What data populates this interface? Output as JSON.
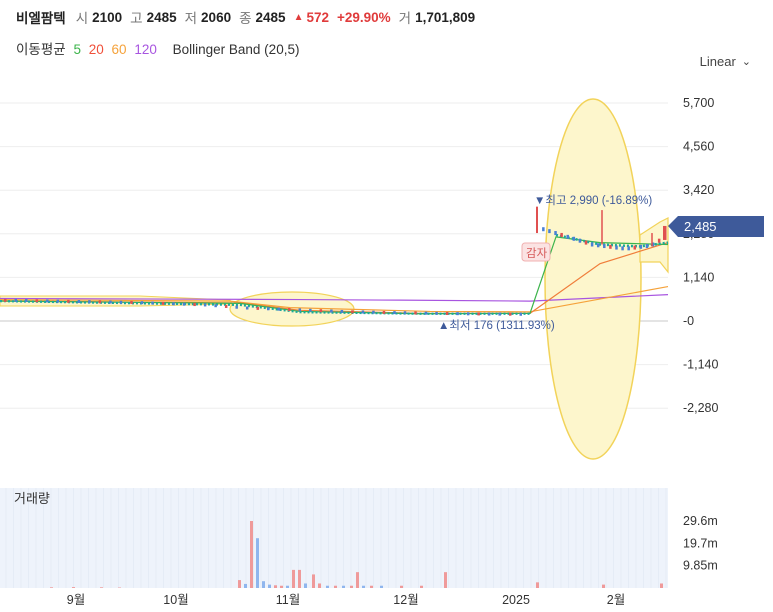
{
  "header": {
    "stock_name": "비엘팜텍",
    "open_label": "시",
    "open": "2100",
    "high_label": "고",
    "high": "2485",
    "low_label": "저",
    "low": "2060",
    "close_label": "종",
    "close": "2485",
    "change": "572",
    "change_pct": "+29.90%",
    "volume_label": "거",
    "volume": "1,701,809"
  },
  "indicators": {
    "label": "이동평균",
    "ma5": "5",
    "ma20": "20",
    "ma60": "60",
    "ma120": "120",
    "bb": "Bollinger Band (20,5)"
  },
  "scale_selector": {
    "label": "Linear"
  },
  "colors": {
    "up": "#e05050",
    "down": "#4a7fd4",
    "ma5": "#3cb44b",
    "ma20": "#f07d3a",
    "ma60": "#f5a23a",
    "ma120": "#a855e0",
    "band": "#f5d860",
    "price_tag": "#3e5a9a"
  },
  "chart_data": {
    "type": "candlestick",
    "price_axis": {
      "ticks": [
        "5,700",
        "4,560",
        "3,420",
        "2,280",
        "1,140",
        "-0",
        "-1,140",
        "-2,280"
      ],
      "tick_values": [
        5700,
        4560,
        3420,
        2280,
        1140,
        0,
        -1140,
        -2280
      ]
    },
    "current_price": "2,485",
    "annotations": {
      "high": "▼최고 2,990 (-16.89%)",
      "low": "▲최저 176 (1311.93%)",
      "reduction": "감자"
    },
    "x_labels": [
      "9월",
      "10월",
      "11월",
      "12월",
      "2025",
      "2월"
    ],
    "price_series": {
      "description_of_phases": [
        "pre-2025",
        "2025"
      ],
      "pre_values": [
        540,
        540,
        535,
        530,
        525,
        520,
        515,
        510,
        505,
        500,
        495,
        490,
        485,
        480,
        470,
        460,
        450,
        440,
        430,
        420,
        400,
        380,
        360,
        340,
        330,
        320,
        310,
        300,
        290,
        280,
        270,
        260,
        250,
        240,
        235,
        230,
        225,
        220,
        215,
        210,
        205,
        200,
        196,
        192,
        188,
        185,
        182,
        180,
        178,
        176
      ],
      "post_values": [
        2990,
        2400,
        2350,
        2300,
        2250,
        2200,
        2150,
        2100,
        2050,
        2000,
        1980,
        1960,
        1940,
        1920,
        1900,
        1900,
        1920,
        1940,
        1960,
        2000,
        2100,
        2485
      ]
    },
    "volume_panel": {
      "title": "거래량",
      "ticks": [
        "29.6m",
        "19.7m",
        "9.85m"
      ],
      "tick_values": [
        29.6,
        19.7,
        9.85
      ]
    }
  }
}
